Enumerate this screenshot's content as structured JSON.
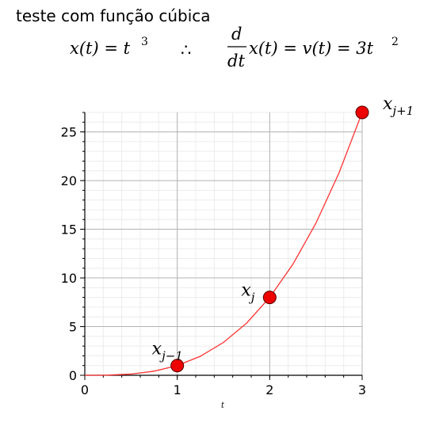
{
  "header": {
    "title": "teste com função cúbica"
  },
  "equation": {
    "lhs": "x(t) = t",
    "lhs_exp": "3",
    "therefore": "∴",
    "frac_num": "d",
    "frac_den": "dt",
    "rhs": "x(t) = v(t) = 3t",
    "rhs_exp": "2"
  },
  "chart_data": {
    "type": "line",
    "title": "",
    "xlabel": "t",
    "ylabel": "",
    "xlim": [
      0,
      3
    ],
    "ylim": [
      0,
      27
    ],
    "xticks": [
      0,
      1,
      2,
      3
    ],
    "yticks": [
      0,
      5,
      10,
      15,
      20,
      25
    ],
    "grid": true,
    "series": [
      {
        "function": "t^3",
        "color": "#ff3333",
        "x": [
          0,
          0.25,
          0.5,
          0.75,
          1,
          1.25,
          1.5,
          1.75,
          2,
          2.25,
          2.5,
          2.75,
          3
        ],
        "y": [
          0,
          0.016,
          0.125,
          0.422,
          1,
          1.953,
          3.375,
          5.359,
          8,
          11.391,
          15.625,
          20.797,
          27
        ]
      }
    ],
    "points": [
      {
        "x": 1,
        "y": 1,
        "label": "x",
        "sub": "j−1"
      },
      {
        "x": 2,
        "y": 8,
        "label": "x",
        "sub": "j"
      },
      {
        "x": 3,
        "y": 27,
        "label": "x",
        "sub": "j+1"
      }
    ],
    "point_color": "#ee0000"
  }
}
